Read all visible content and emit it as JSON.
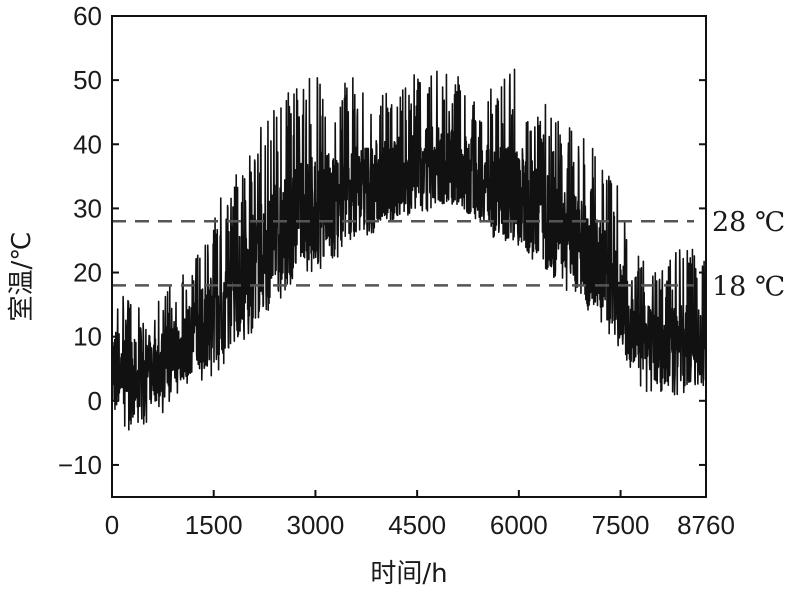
{
  "chart_data": {
    "type": "line",
    "title": "",
    "xlabel": "时间/h",
    "ylabel": "室温/℃",
    "xlim": [
      0,
      8760
    ],
    "ylim": [
      -15,
      60
    ],
    "x_ticks": [
      0,
      1500,
      3000,
      4500,
      6000,
      7500,
      8760
    ],
    "y_ticks": [
      -10,
      0,
      10,
      20,
      30,
      40,
      50,
      60
    ],
    "y_tick_labels": [
      "−10",
      "0",
      "10",
      "20",
      "30",
      "40",
      "50",
      "60"
    ],
    "grid": false,
    "series": [
      {
        "color": "#111111",
        "x": [
          0,
          300,
          600,
          900,
          1200,
          1500,
          1800,
          2100,
          2400,
          2700,
          3000,
          3300,
          3600,
          3900,
          4200,
          4500,
          4800,
          5100,
          5400,
          5700,
          6000,
          6300,
          6600,
          6900,
          7200,
          7500,
          7800,
          8100,
          8400,
          8760
        ],
        "y_mean": [
          6,
          4,
          5,
          7,
          10,
          13,
          17,
          21,
          25,
          28,
          30,
          31,
          33,
          34,
          35,
          36,
          37,
          36,
          35,
          33,
          32,
          30,
          27,
          24,
          21,
          16,
          10,
          8,
          9,
          8
        ],
        "y_min": [
          -3,
          -5,
          -3,
          -1,
          2,
          4,
          7,
          11,
          15,
          18,
          20,
          22,
          25,
          26,
          28,
          29,
          30,
          29,
          27,
          25,
          24,
          21,
          18,
          15,
          12,
          8,
          2,
          0,
          1,
          1
        ],
        "y_max": [
          20,
          15,
          17,
          19,
          22,
          30,
          36,
          42,
          47,
          49,
          53,
          50,
          51,
          51,
          50,
          51,
          52,
          51,
          50,
          50,
          54,
          47,
          45,
          42,
          38,
          33,
          22,
          20,
          25,
          22
        ]
      }
    ],
    "reference_lines": [
      {
        "y": 28,
        "label": "28 ℃",
        "style": "dashed",
        "color": "#555555"
      },
      {
        "y": 18,
        "label": "18 ℃",
        "style": "dashed",
        "color": "#555555"
      }
    ]
  }
}
